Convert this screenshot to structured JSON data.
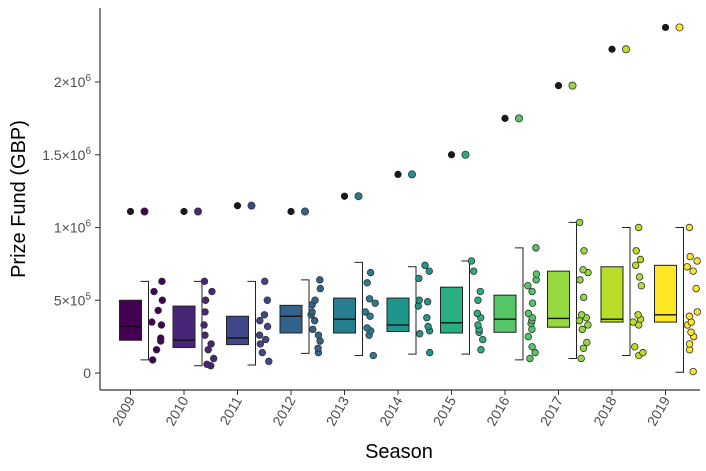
{
  "chart_data": {
    "type": "boxplot",
    "title": "",
    "xlabel": "Season",
    "ylabel": "Prize Fund (GBP)",
    "ylim": [
      -100000,
      2500000
    ],
    "yticks": [
      {
        "value": 0,
        "label": "0",
        "exp": ""
      },
      {
        "value": 500000,
        "label": "5×10",
        "exp": "5"
      },
      {
        "value": 1000000,
        "label": "1×10",
        "exp": "6"
      },
      {
        "value": 1500000,
        "label": "1.5×10",
        "exp": "6"
      },
      {
        "value": 2000000,
        "label": "2×10",
        "exp": "6"
      }
    ],
    "categories": [
      "2009",
      "2010",
      "2011",
      "2012",
      "2013",
      "2014",
      "2015",
      "2016",
      "2017",
      "2018",
      "2019"
    ],
    "colors": [
      "#440154",
      "#482677",
      "#404788",
      "#33638D",
      "#287D8E",
      "#1F968B",
      "#29AF7F",
      "#55C667",
      "#95D840",
      "#B8DE29",
      "#FDE725"
    ],
    "series": [
      {
        "season": "2009",
        "q1": 225000,
        "median": 320000,
        "q3": 500000,
        "whisker_low": 90000,
        "whisker_high": 630000,
        "outlier": 1110000,
        "points": [
          90000,
          160000,
          220000,
          240000,
          330000,
          350000,
          430000,
          500000,
          560000,
          630000
        ]
      },
      {
        "season": "2010",
        "q1": 175000,
        "median": 225000,
        "q3": 460000,
        "whisker_low": 50000,
        "whisker_high": 630000,
        "outlier": 1110000,
        "points": [
          50000,
          60000,
          100000,
          160000,
          200000,
          260000,
          330000,
          420000,
          500000,
          560000,
          630000
        ]
      },
      {
        "season": "2011",
        "q1": 195000,
        "median": 240000,
        "q3": 390000,
        "whisker_low": 55000,
        "whisker_high": 630000,
        "outlier": 1150000,
        "points": [
          80000,
          140000,
          200000,
          230000,
          260000,
          320000,
          360000,
          400000,
          500000,
          630000
        ]
      },
      {
        "season": "2012",
        "q1": 275000,
        "median": 390000,
        "q3": 465000,
        "whisker_low": 135000,
        "whisker_high": 640000,
        "outlier": 1110000,
        "points": [
          140000,
          170000,
          220000,
          260000,
          300000,
          360000,
          400000,
          420000,
          470000,
          500000,
          580000,
          640000
        ]
      },
      {
        "season": "2013",
        "q1": 275000,
        "median": 370000,
        "q3": 515000,
        "whisker_low": 120000,
        "whisker_high": 760000,
        "outlier": 1215000,
        "points": [
          120000,
          260000,
          290000,
          310000,
          390000,
          420000,
          480000,
          510000,
          620000,
          690000
        ]
      },
      {
        "season": "2014",
        "q1": 285000,
        "median": 330000,
        "q3": 515000,
        "whisker_low": 130000,
        "whisker_high": 730000,
        "outlier": 1365000,
        "points": [
          140000,
          270000,
          290000,
          320000,
          380000,
          460000,
          490000,
          500000,
          650000,
          700000,
          740000
        ]
      },
      {
        "season": "2015",
        "q1": 275000,
        "median": 345000,
        "q3": 590000,
        "whisker_low": 130000,
        "whisker_high": 770000,
        "outlier": 1500000,
        "points": [
          160000,
          230000,
          280000,
          300000,
          330000,
          380000,
          410000,
          500000,
          560000,
          700000,
          770000
        ]
      },
      {
        "season": "2016",
        "q1": 280000,
        "median": 370000,
        "q3": 535000,
        "whisker_low": 90000,
        "whisker_high": 860000,
        "outlier": 1750000,
        "points": [
          100000,
          140000,
          180000,
          250000,
          300000,
          340000,
          360000,
          380000,
          410000,
          480000,
          560000,
          600000,
          640000,
          680000,
          860000
        ]
      },
      {
        "season": "2017",
        "q1": 315000,
        "median": 375000,
        "q3": 700000,
        "whisker_low": 100000,
        "whisker_high": 1035000,
        "outlier": 1975000,
        "points": [
          100000,
          170000,
          210000,
          300000,
          330000,
          360000,
          380000,
          400000,
          520000,
          640000,
          690000,
          710000,
          840000,
          1035000
        ]
      },
      {
        "season": "2018",
        "q1": 350000,
        "median": 370000,
        "q3": 730000,
        "whisker_low": 120000,
        "whisker_high": 1000000,
        "outlier": 2225000,
        "points": [
          120000,
          140000,
          180000,
          330000,
          350000,
          370000,
          400000,
          600000,
          660000,
          740000,
          780000,
          840000,
          1000000
        ]
      },
      {
        "season": "2019",
        "q1": 350000,
        "median": 400000,
        "q3": 740000,
        "whisker_low": 5000,
        "whisker_high": 1000000,
        "outlier": 2375000,
        "points": [
          10000,
          160000,
          200000,
          250000,
          280000,
          330000,
          350000,
          390000,
          420000,
          580000,
          700000,
          730000,
          770000,
          800000,
          1000000
        ]
      }
    ]
  }
}
